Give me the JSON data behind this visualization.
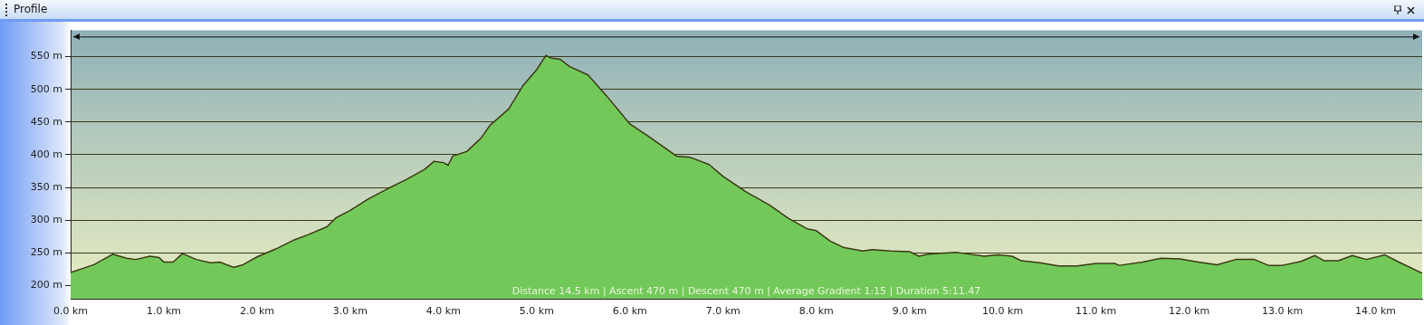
{
  "chart_data": {
    "type": "area",
    "title": "Profile",
    "annotations": [
      "Distance 14.5 km | Ascent 470 m | Descent 470 m | Average Gradient 1:15 | Duration 5:11.47"
    ],
    "x": [
      0,
      0.25,
      0.45,
      0.6,
      0.7,
      0.85,
      0.95,
      1.0,
      1.1,
      1.2,
      1.35,
      1.5,
      1.6,
      1.75,
      1.85,
      2.0,
      2.2,
      2.4,
      2.55,
      2.75,
      2.85,
      3.0,
      3.2,
      3.4,
      3.6,
      3.8,
      3.9,
      4.0,
      4.05,
      4.1,
      4.25,
      4.4,
      4.5,
      4.7,
      4.85,
      5.0,
      5.1,
      5.15,
      5.25,
      5.35,
      5.55,
      5.75,
      6.0,
      6.2,
      6.4,
      6.5,
      6.65,
      6.85,
      7.0,
      7.25,
      7.5,
      7.7,
      7.9,
      8.0,
      8.15,
      8.3,
      8.5,
      8.6,
      8.8,
      9.0,
      9.1,
      9.2,
      9.3,
      9.5,
      9.6,
      9.8,
      9.95,
      10.1,
      10.2,
      10.4,
      10.6,
      10.8,
      11.0,
      11.2,
      11.25,
      11.5,
      11.7,
      11.9,
      12.1,
      12.3,
      12.5,
      12.7,
      12.85,
      13.0,
      13.2,
      13.35,
      13.45,
      13.6,
      13.75,
      13.9,
      14.1,
      14.25,
      14.5
    ],
    "series": [
      {
        "color": "#72c95a",
        "values": [
          220,
          232,
          248,
          242,
          240,
          245,
          243,
          236,
          236,
          249,
          240,
          235,
          236,
          228,
          232,
          244,
          256,
          270,
          278,
          290,
          304,
          315,
          333,
          348,
          362,
          378,
          390,
          388,
          384,
          398,
          405,
          425,
          445,
          470,
          505,
          530,
          552,
          548,
          546,
          535,
          522,
          490,
          447,
          428,
          408,
          398,
          396,
          385,
          367,
          343,
          323,
          303,
          287,
          284,
          268,
          258,
          253,
          255,
          253,
          252,
          245,
          248,
          249,
          251,
          249,
          245,
          247,
          245,
          238,
          235,
          230,
          230,
          234,
          234,
          231,
          236,
          242,
          241,
          236,
          232,
          240,
          240,
          231,
          231,
          237,
          246,
          238,
          238,
          246,
          240,
          247,
          236,
          219
        ]
      }
    ],
    "xlim": [
      0,
      14.5
    ],
    "ylim": [
      180,
      590
    ],
    "xticks": [
      {
        "value": 0,
        "label": "0.0 km"
      },
      {
        "value": 1,
        "label": "1.0 km"
      },
      {
        "value": 2,
        "label": "2.0 km"
      },
      {
        "value": 3,
        "label": "3.0 km"
      },
      {
        "value": 4,
        "label": "4.0 km"
      },
      {
        "value": 5,
        "label": "5.0 km"
      },
      {
        "value": 6,
        "label": "6.0 km"
      },
      {
        "value": 7,
        "label": "7.0 km"
      },
      {
        "value": 8,
        "label": "8.0 km"
      },
      {
        "value": 9,
        "label": "9.0 km"
      },
      {
        "value": 10,
        "label": "10.0 km"
      },
      {
        "value": 11,
        "label": "11.0 km"
      },
      {
        "value": 12,
        "label": "12.0 km"
      },
      {
        "value": 13,
        "label": "13.0 km"
      },
      {
        "value": 14,
        "label": "14.0 km"
      }
    ],
    "yticks": [
      {
        "value": 200,
        "label": "200 m"
      },
      {
        "value": 250,
        "label": "250 m"
      },
      {
        "value": 300,
        "label": "300 m"
      },
      {
        "value": 350,
        "label": "350 m"
      },
      {
        "value": 400,
        "label": "400 m"
      },
      {
        "value": 450,
        "label": "450 m"
      },
      {
        "value": 500,
        "label": "500 m"
      },
      {
        "value": 550,
        "label": "550 m"
      }
    ],
    "ref_lines": [
      {
        "axis": "y",
        "value": 580,
        "color": "#111111",
        "line_style": "solid"
      }
    ],
    "grid": "y",
    "legend": false,
    "marker": "none",
    "line_style": "solid"
  }
}
